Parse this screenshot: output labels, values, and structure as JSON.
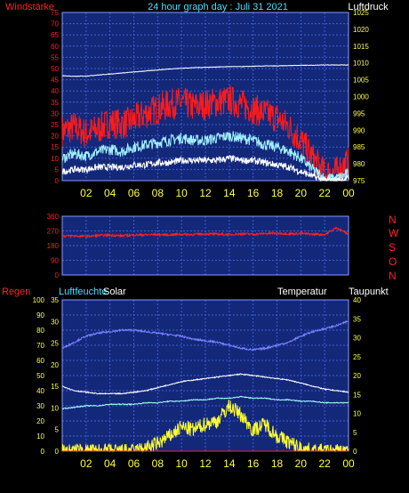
{
  "header": {
    "left_label": "Windstärke",
    "center_title": "24 hour graph day : Juli 31 2021",
    "right_label": "Luftdruck"
  },
  "colors": {
    "bg": "#000000",
    "plot_bg": "#14287a",
    "grid": "#3b5fd0",
    "axis_red": "#ff2020",
    "axis_yellow": "#ffff40",
    "axis_cyan": "#40e0ff",
    "wind_gust": "#ff1a1a",
    "wind_avg": "#9ff0ff",
    "wind_min": "#ffffff",
    "pressure": "#ffffff",
    "winddir": "#ff2020",
    "humidity": "#7a80ff",
    "temperature": "#ffffff",
    "dewpoint": "#a0ffff",
    "solar": "#ffff30"
  },
  "x_ticks": [
    "02",
    "04",
    "06",
    "08",
    "10",
    "12",
    "14",
    "16",
    "18",
    "20",
    "22",
    "00"
  ],
  "chart_data": [
    {
      "type": "line",
      "title": "24 hour graph day : Juli 31 2021",
      "x_hours": [
        0,
        1,
        2,
        3,
        4,
        5,
        6,
        7,
        8,
        9,
        10,
        11,
        12,
        13,
        14,
        15,
        16,
        17,
        18,
        19,
        20,
        21,
        22,
        23,
        24
      ],
      "left_axis": {
        "label": "Windstärke",
        "ylim": [
          0,
          75
        ],
        "ticks": [
          0,
          5,
          10,
          15,
          20,
          25,
          30,
          35,
          40,
          45,
          50,
          55,
          60,
          65,
          70,
          75
        ]
      },
      "right_axis": {
        "label": "Luftdruck",
        "ylim": [
          975,
          1025
        ],
        "ticks": [
          975,
          980,
          985,
          990,
          995,
          1000,
          1005,
          1010,
          1015,
          1020,
          1025
        ]
      },
      "series": [
        {
          "name": "Windstärke Böen",
          "axis": "left",
          "values": [
            22,
            24,
            21,
            23,
            26,
            25,
            27,
            30,
            32,
            34,
            35,
            33,
            34,
            35,
            36,
            34,
            32,
            30,
            28,
            24,
            18,
            10,
            3,
            4,
            8
          ]
        },
        {
          "name": "Windstärke Mittel",
          "axis": "left",
          "values": [
            10,
            12,
            11,
            13,
            14,
            13,
            15,
            16,
            17,
            18,
            19,
            18,
            18,
            19,
            20,
            19,
            18,
            16,
            15,
            13,
            10,
            5,
            1,
            1,
            3
          ]
        },
        {
          "name": "Windstärke Min",
          "axis": "left",
          "values": [
            4,
            5,
            5,
            6,
            6,
            6,
            7,
            7,
            8,
            8,
            9,
            9,
            9,
            9,
            10,
            9,
            9,
            8,
            7,
            6,
            4,
            2,
            0,
            0,
            1
          ]
        },
        {
          "name": "Luftdruck",
          "axis": "right",
          "values": [
            1006.2,
            1006.0,
            1006.1,
            1006.4,
            1006.7,
            1007.0,
            1007.3,
            1007.6,
            1007.9,
            1008.2,
            1008.4,
            1008.6,
            1008.7,
            1008.8,
            1008.9,
            1008.9,
            1009.0,
            1009.1,
            1009.1,
            1009.2,
            1009.3,
            1009.3,
            1009.4,
            1009.4,
            1009.4
          ]
        }
      ]
    },
    {
      "type": "line",
      "left_axis": {
        "ylim": [
          0,
          360
        ],
        "ticks": [
          0,
          90,
          180,
          270,
          360
        ]
      },
      "direction_labels": [
        "N",
        "W",
        "S",
        "O",
        "N"
      ],
      "series": [
        {
          "name": "Windrichtung",
          "axis": "left",
          "values": [
            238,
            240,
            236,
            242,
            244,
            240,
            245,
            246,
            248,
            246,
            250,
            248,
            252,
            250,
            248,
            252,
            250,
            254,
            256,
            252,
            254,
            250,
            248,
            290,
            250
          ]
        }
      ]
    },
    {
      "type": "line",
      "left_axis": {
        "label": "Regen",
        "ylim": [
          0,
          100
        ],
        "ticks": [
          0,
          10,
          20,
          30,
          40,
          50,
          60,
          70,
          80,
          90,
          100
        ]
      },
      "left_axis2": {
        "label": "Luftfeuchte",
        "ylim": [
          0,
          35
        ],
        "ticks": [
          0,
          5,
          10,
          15,
          20,
          25,
          30,
          35
        ]
      },
      "right_axis": {
        "label": "Taupunkt",
        "ylim": [
          0,
          40
        ],
        "ticks": [
          0,
          5,
          10,
          15,
          20,
          25,
          30,
          35,
          40
        ]
      },
      "legend": [
        "Solar",
        "Temperatur"
      ],
      "series": [
        {
          "name": "Luftfeuchte",
          "axis": "left",
          "values": [
            68,
            72,
            76,
            78,
            79,
            80,
            80,
            79,
            78,
            77,
            76,
            74,
            73,
            72,
            70,
            68,
            67,
            68,
            70,
            72,
            76,
            79,
            81,
            83,
            86
          ]
        },
        {
          "name": "Temperatur",
          "axis": "left",
          "values": [
            43,
            40,
            39,
            38,
            38,
            38,
            39,
            40,
            42,
            44,
            46,
            47,
            48,
            49,
            50,
            51,
            50,
            49,
            48,
            47,
            45,
            43,
            41,
            40,
            39
          ]
        },
        {
          "name": "Taupunkt",
          "axis": "left",
          "values": [
            28,
            29,
            30,
            30,
            31,
            31,
            31,
            32,
            32,
            33,
            33,
            34,
            34,
            35,
            35,
            36,
            35,
            35,
            34,
            34,
            33,
            33,
            32,
            32,
            32
          ]
        },
        {
          "name": "Solar",
          "axis": "left",
          "values": [
            0,
            0,
            0,
            0,
            0,
            0,
            0,
            2,
            5,
            10,
            16,
            14,
            18,
            20,
            30,
            24,
            14,
            18,
            10,
            6,
            2,
            0,
            0,
            0,
            0
          ]
        },
        {
          "name": "Regen",
          "axis": "left",
          "values": [
            0,
            0,
            0,
            0,
            0,
            0,
            0,
            0,
            0,
            0,
            0,
            0,
            0,
            0,
            0,
            0,
            0,
            0,
            0,
            0,
            0,
            0,
            0,
            0,
            0
          ]
        }
      ]
    }
  ],
  "bottom_panel": {
    "label_regen": "Regen",
    "label_luftfeuchte": "Luftfeuchte",
    "label_solar": "Solar",
    "label_temperatur": "Temperatur",
    "label_taupunkt": "Taupunkt"
  }
}
